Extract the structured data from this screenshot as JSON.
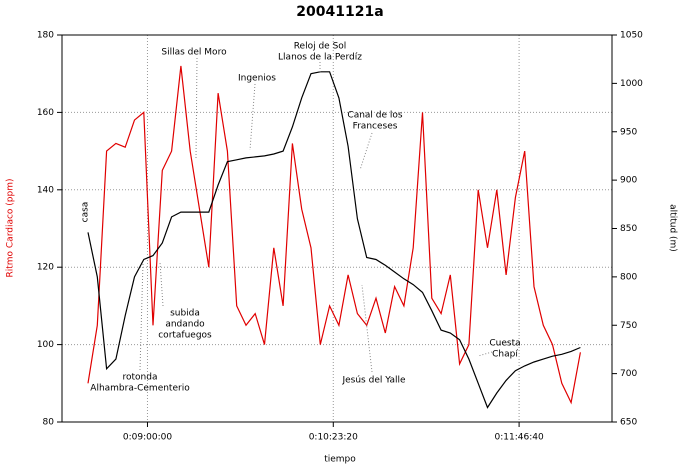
{
  "chart_data": {
    "type": "line",
    "title": "20041121a",
    "xlabel": "tiempo",
    "ylabel": "Ritmo Cardiaco (ppm)",
    "y2label": "altitud (m)",
    "x": [
      30800,
      31050,
      31300,
      31550,
      31800,
      32050,
      32300,
      32550,
      32800,
      33050,
      33300,
      33550,
      33800,
      34050,
      34300,
      34550,
      34800,
      35050,
      35300,
      35550,
      35800,
      36050,
      36300,
      36550,
      36800,
      37050,
      37300,
      37550,
      37800,
      38050,
      38300,
      38550,
      38800,
      39050,
      39300,
      39550,
      39800,
      40050,
      40300,
      40550,
      40800,
      41050,
      41300,
      41550,
      41800,
      42050,
      42300,
      42550,
      42800,
      43050,
      43300,
      43550,
      43800,
      44050
    ],
    "series": [
      {
        "name": "Ritmo Cardiaco",
        "color": "#e00000",
        "axis": "y",
        "values": [
          90,
          105,
          150,
          152,
          151,
          158,
          160,
          105,
          145,
          150,
          172,
          150,
          135,
          120,
          165,
          150,
          110,
          105,
          108,
          100,
          125,
          110,
          152,
          135,
          125,
          100,
          110,
          105,
          118,
          108,
          105,
          112,
          103,
          115,
          110,
          125,
          160,
          112,
          108,
          118,
          95,
          100,
          140,
          125,
          140,
          118,
          138,
          150,
          115,
          105,
          100,
          90,
          85,
          98
        ]
      },
      {
        "name": "altitud",
        "color": "#000000",
        "axis": "y2",
        "values": [
          846,
          800,
          705,
          715,
          760,
          800,
          818,
          822,
          835,
          862,
          867,
          867,
          867,
          867,
          895,
          919,
          921,
          923,
          924,
          925,
          927,
          930,
          955,
          985,
          1010,
          1012,
          1012,
          985,
          935,
          860,
          820,
          818,
          812,
          805,
          798,
          792,
          784,
          765,
          745,
          742,
          735,
          715,
          690,
          665,
          680,
          693,
          703,
          708,
          712,
          715,
          718,
          720,
          723,
          727
        ]
      }
    ],
    "xlim": [
      30100,
      44900
    ],
    "xticks": [
      {
        "value": 32400,
        "label": "0:09:00:00"
      },
      {
        "value": 37400,
        "label": "0:10:23:20"
      },
      {
        "value": 42400,
        "label": "0:11:46:40"
      }
    ],
    "ylim": [
      80,
      180
    ],
    "yticks": [
      80,
      100,
      120,
      140,
      160,
      180
    ],
    "y2lim": [
      650,
      1050
    ],
    "y2ticks": [
      650,
      700,
      750,
      800,
      850,
      900,
      950,
      1000,
      1050
    ],
    "grid": true,
    "annotations": [
      [
        "casa"
      ],
      [
        "rotonda",
        "Alhambra-Cementerio"
      ],
      [
        "subida",
        "andando",
        "cortafuegos"
      ],
      [
        "Sillas del Moro"
      ],
      [
        "Ingenios"
      ],
      [
        "Reloj de Sol",
        "Llanos de la Perdíz"
      ],
      [
        "Canal de los",
        "Franceses"
      ],
      [
        "Jesús del Yalle"
      ],
      [
        "Cuesta",
        "Chapí"
      ]
    ]
  }
}
